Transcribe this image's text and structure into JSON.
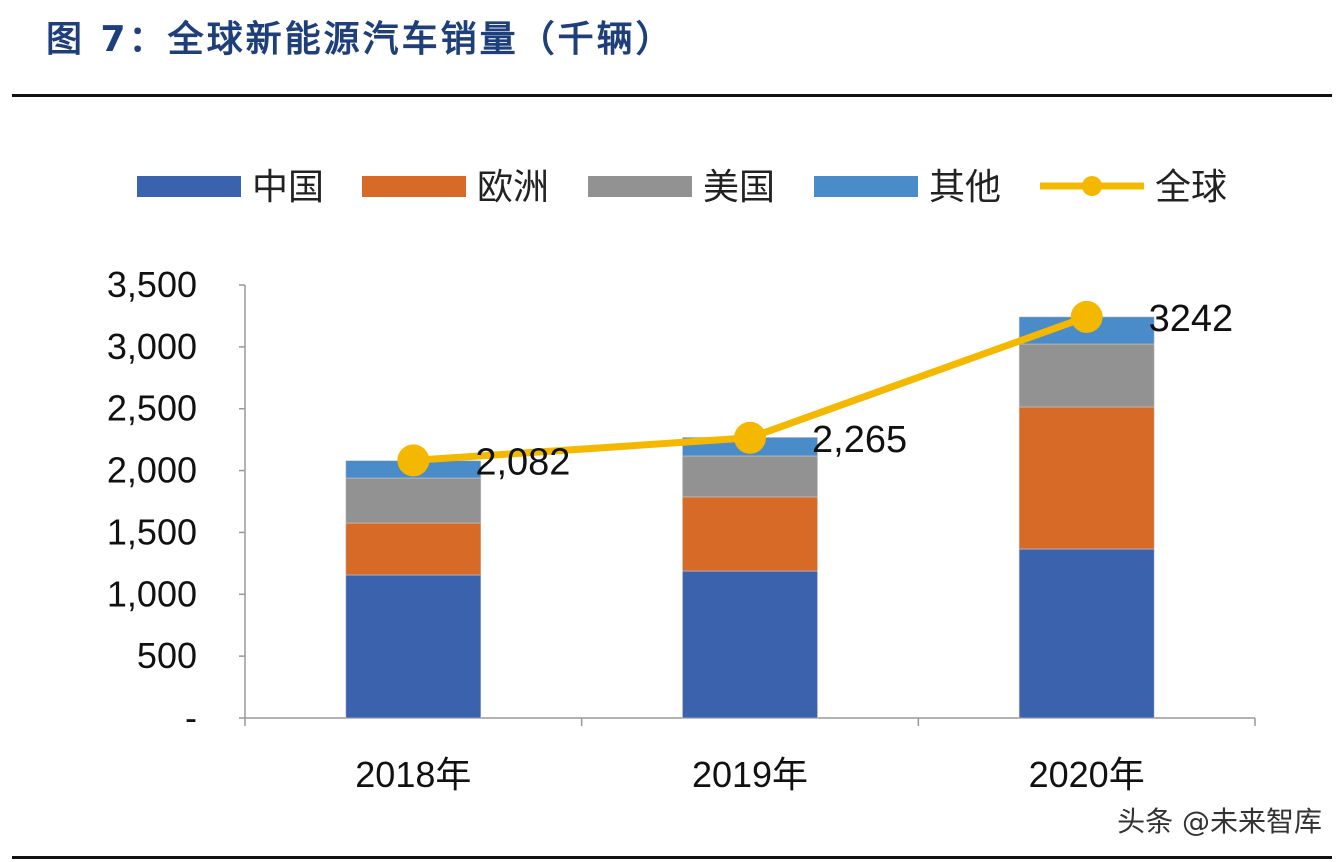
{
  "title": "图 7：全球新能源汽车销量（千辆）",
  "watermark": "头条 @未来智库",
  "chart_data": {
    "type": "bar",
    "stacked": true,
    "title": "",
    "xlabel": "",
    "ylabel": "",
    "categories": [
      "2018年",
      "2019年",
      "2020年"
    ],
    "ylim": [
      0,
      3500
    ],
    "yticks": [
      0,
      500,
      1000,
      1500,
      2000,
      2500,
      3000,
      3500
    ],
    "ytick_labels": [
      "-",
      "500",
      "1,000",
      "1,500",
      "2,000",
      "2,500",
      "3,000",
      "3,500"
    ],
    "grid": false,
    "legend_position": "top",
    "series": [
      {
        "name": "中国",
        "type": "bar",
        "color": "#3b62ad",
        "values": [
          1156,
          1188,
          1366
        ]
      },
      {
        "name": "欧洲",
        "type": "bar",
        "color": "#d86a28",
        "values": [
          420,
          599,
          1148
        ]
      },
      {
        "name": "美国",
        "type": "bar",
        "color": "#929292",
        "values": [
          364,
          331,
          509
        ]
      },
      {
        "name": "其他",
        "type": "bar",
        "color": "#4a8bc9",
        "values": [
          140,
          150,
          219
        ]
      },
      {
        "name": "全球",
        "type": "line",
        "color": "#f5b800",
        "values": [
          2082,
          2265,
          3242
        ],
        "data_labels": [
          "2,082",
          "2,265",
          "3242"
        ]
      }
    ]
  }
}
